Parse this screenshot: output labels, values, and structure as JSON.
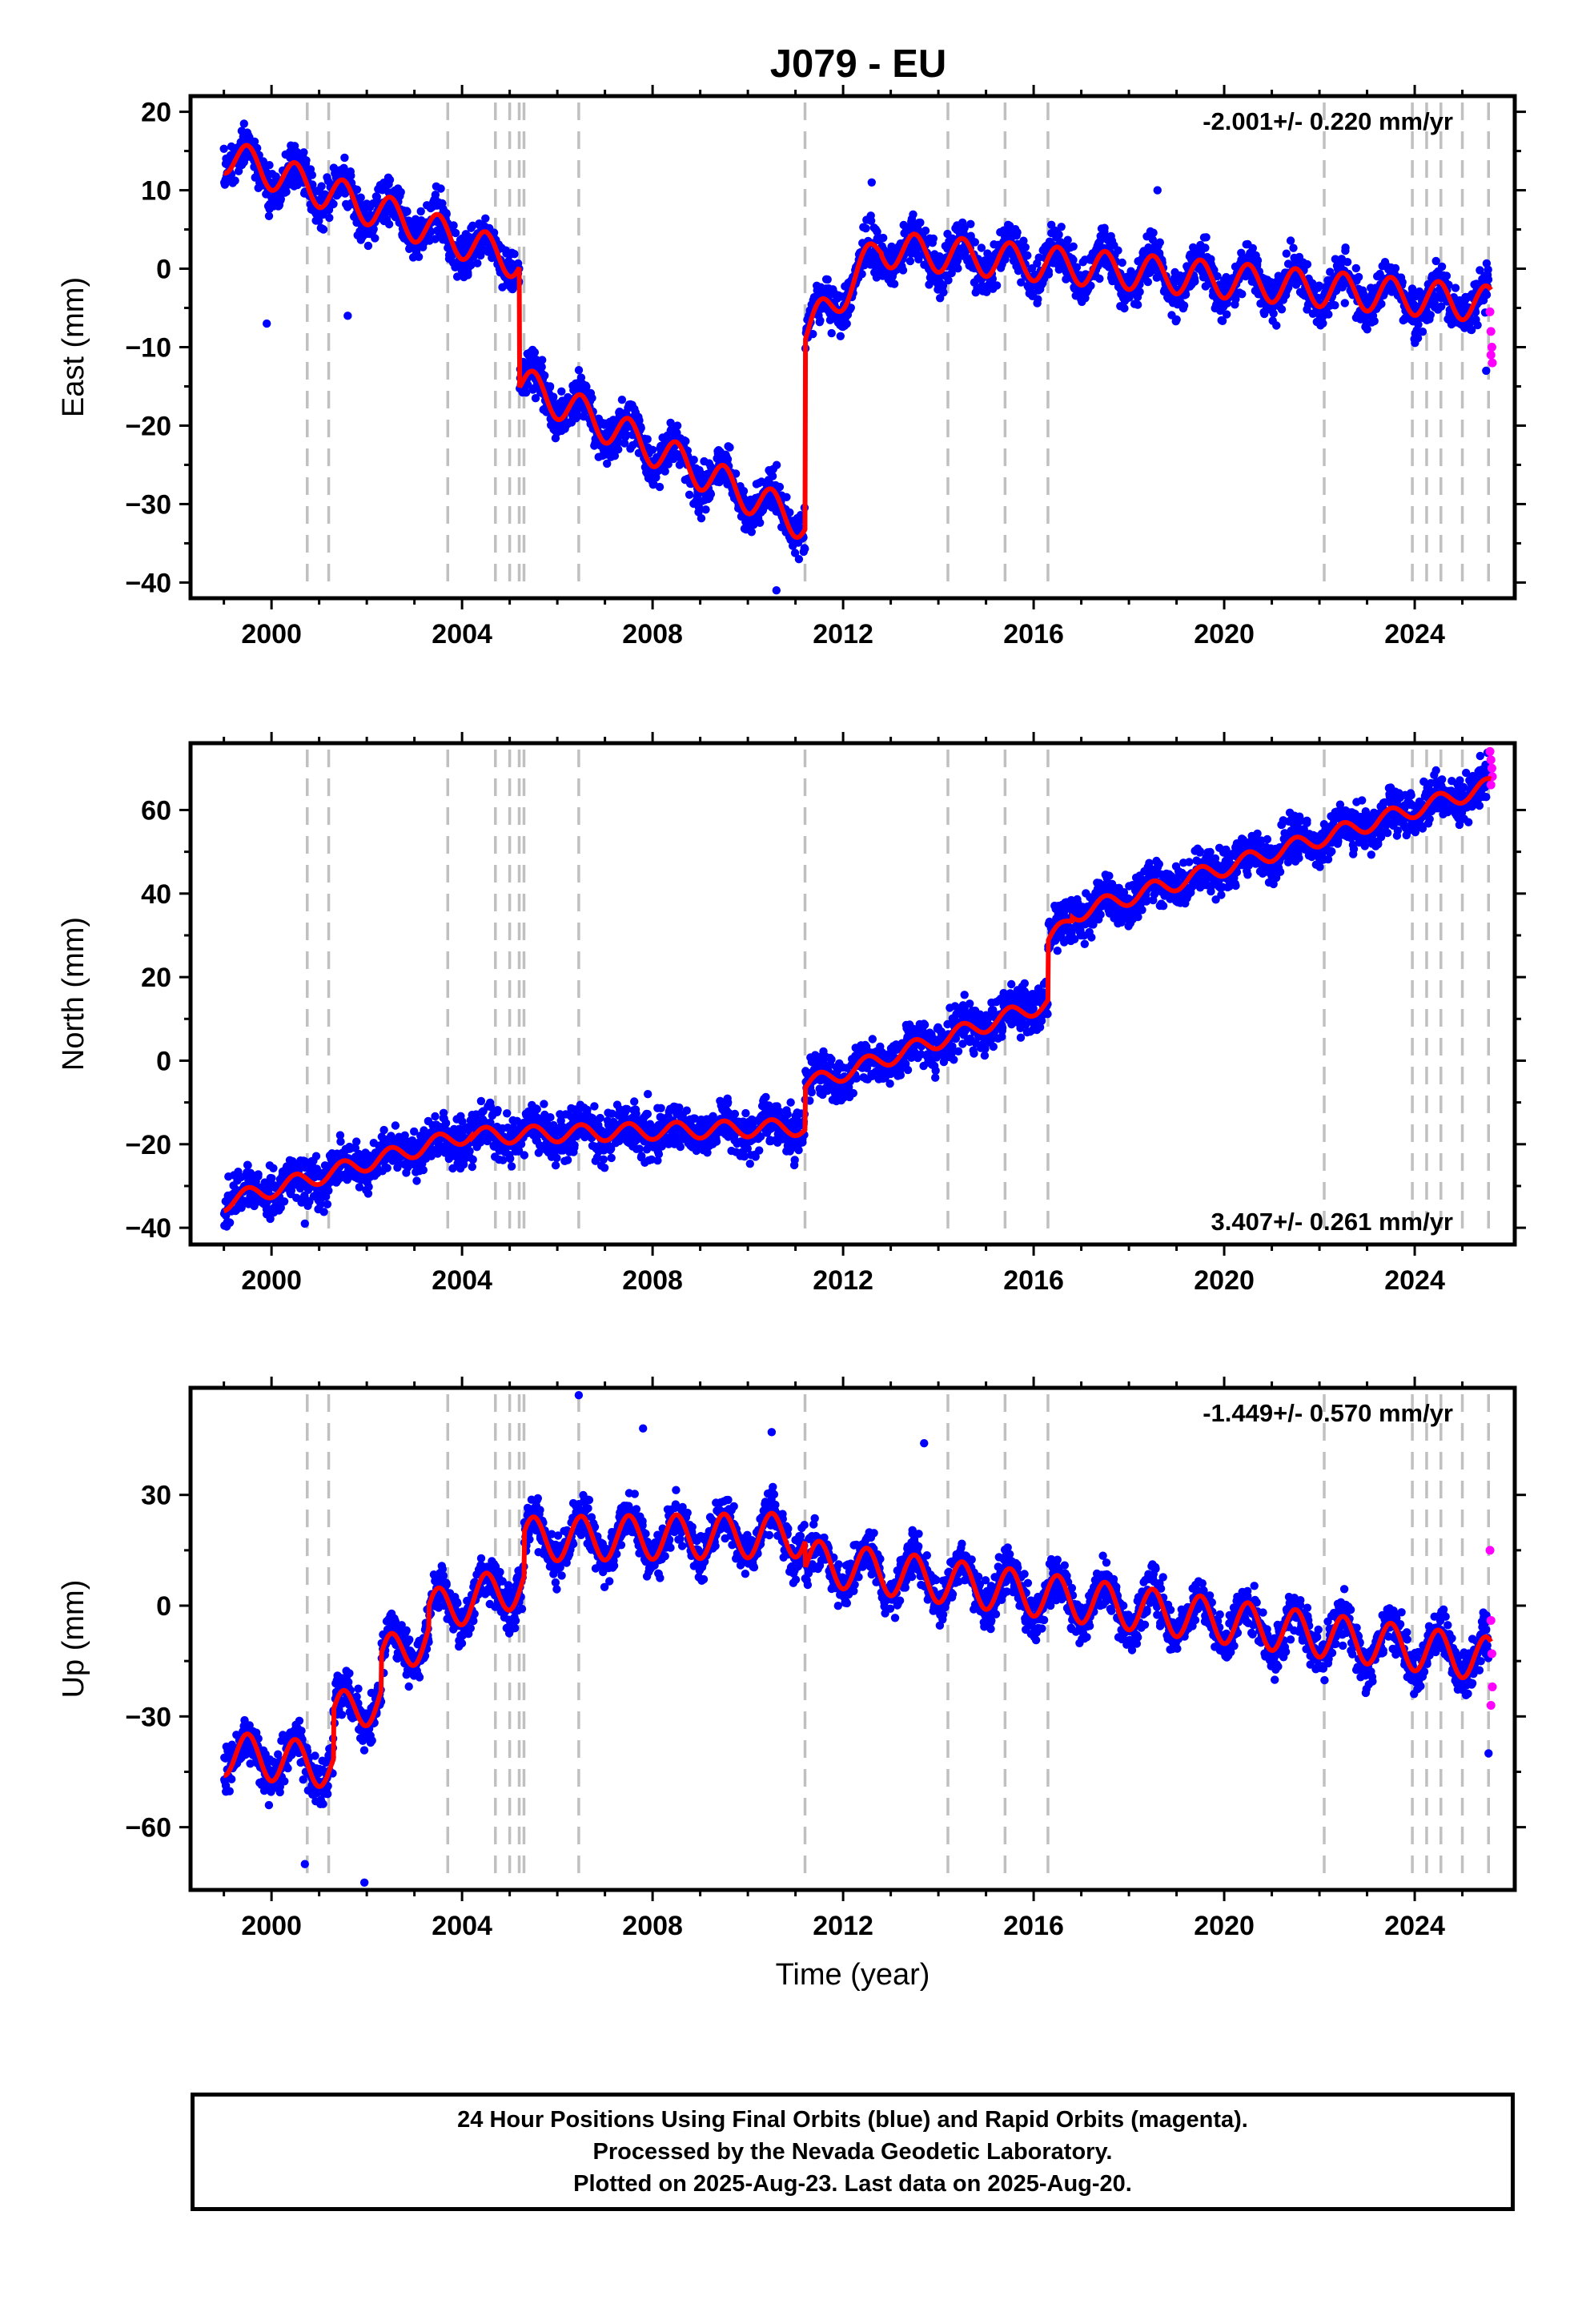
{
  "title": "J079 - EU",
  "colors": {
    "final_points": "#0000ff",
    "rapid_points": "#ff00ff",
    "model": "#ff0000",
    "event_lines": "#c0c0c0",
    "frame": "#000000"
  },
  "chart_data": [
    {
      "type": "scatter",
      "name": "east",
      "ylabel": "East (mm)",
      "xlabel": "",
      "xlim": [
        1998.3,
        2026.1
      ],
      "ylim": [
        -42,
        22
      ],
      "xticks": [
        2000,
        2004,
        2008,
        2012,
        2016,
        2020,
        2024
      ],
      "xtick_labels": [
        "2000",
        "2004",
        "2008",
        "2012",
        "2016",
        "2020",
        "2024"
      ],
      "yticks": [
        -40,
        -30,
        -20,
        -10,
        0,
        10,
        20
      ],
      "ytick_labels": [
        "−40",
        "−30",
        "−20",
        "−10",
        "0",
        "10",
        "20"
      ],
      "rate_text": "-2.001+/- 0.220 mm/yr",
      "rate_position": "top-right",
      "event_lines": [
        2000.75,
        2001.2,
        2003.7,
        2004.7,
        2005.0,
        2005.2,
        2005.3,
        2006.45,
        2011.2,
        2014.2,
        2015.4,
        2016.3,
        2022.1,
        2023.95,
        2024.25,
        2024.55,
        2025.0,
        2025.55
      ],
      "model": {
        "start_year": 1999.0,
        "end_year": 2025.6,
        "seasonal_amplitude": 2.3,
        "segments": [
          {
            "from": 1999.0,
            "to": 2005.2,
            "value_at_start": 14.5,
            "rate": -2.2
          },
          {
            "from": 2005.2,
            "to": 2011.2,
            "value_at_start": -14.5,
            "rate": -3.0
          },
          {
            "from": 2011.2,
            "to": 2012.8,
            "value_at_start": -8.5,
            "rate": 7.0
          },
          {
            "from": 2012.8,
            "to": 2025.6,
            "value_at_start": 2.5,
            "rate": -0.55
          }
        ]
      },
      "outliers": [
        {
          "x": 1999.9,
          "y": -7
        },
        {
          "x": 2001.6,
          "y": -6
        },
        {
          "x": 2018.6,
          "y": 10
        },
        {
          "x": 2010.6,
          "y": -41
        },
        {
          "x": 2012.6,
          "y": 11
        },
        {
          "x": 2025.5,
          "y": -13
        }
      ],
      "rapid_points": [
        {
          "x": 2025.58,
          "y": -5.5
        },
        {
          "x": 2025.6,
          "y": -8
        },
        {
          "x": 2025.62,
          "y": -10
        },
        {
          "x": 2025.63,
          "y": -12
        },
        {
          "x": 2025.6,
          "y": -11
        }
      ]
    },
    {
      "type": "scatter",
      "name": "north",
      "ylabel": "North (mm)",
      "xlabel": "",
      "xlim": [
        1998.3,
        2026.1
      ],
      "ylim": [
        -44,
        76
      ],
      "xticks": [
        2000,
        2004,
        2008,
        2012,
        2016,
        2020,
        2024
      ],
      "xtick_labels": [
        "2000",
        "2004",
        "2008",
        "2012",
        "2016",
        "2020",
        "2024"
      ],
      "yticks": [
        -40,
        -20,
        0,
        20,
        40,
        60
      ],
      "ytick_labels": [
        "−40",
        "−20",
        "0",
        "20",
        "40",
        "60"
      ],
      "rate_text": "3.407+/- 0.261 mm/yr",
      "rate_position": "bottom-right",
      "event_lines": [
        2000.75,
        2001.2,
        2003.7,
        2004.7,
        2005.0,
        2005.2,
        2005.3,
        2006.45,
        2011.2,
        2014.2,
        2015.4,
        2016.3,
        2022.1,
        2023.95,
        2024.25,
        2024.55,
        2025.0,
        2025.55
      ],
      "model": {
        "start_year": 1999.0,
        "end_year": 2025.6,
        "seasonal_amplitude": 2.0,
        "segments": [
          {
            "from": 1999.0,
            "to": 2004.2,
            "value_at_start": -34,
            "rate": 3.2
          },
          {
            "from": 2004.2,
            "to": 2011.2,
            "value_at_start": -18,
            "rate": 0.3
          },
          {
            "from": 2011.2,
            "to": 2016.3,
            "value_at_start": -6,
            "rate": 3.9
          },
          {
            "from": 2016.3,
            "to": 2016.8,
            "value_at_start": 28,
            "rate": 12
          },
          {
            "from": 2016.8,
            "to": 2025.6,
            "value_at_start": 35,
            "rate": 3.5
          }
        ]
      },
      "outliers": [
        {
          "x": 2007.9,
          "y": -8
        },
        {
          "x": 2000.7,
          "y": -39
        },
        {
          "x": 2010.9,
          "y": -10
        }
      ],
      "rapid_points": [
        {
          "x": 2025.58,
          "y": 74
        },
        {
          "x": 2025.6,
          "y": 72
        },
        {
          "x": 2025.62,
          "y": 70
        },
        {
          "x": 2025.63,
          "y": 68
        },
        {
          "x": 2025.6,
          "y": 66
        }
      ]
    },
    {
      "type": "scatter",
      "name": "up",
      "ylabel": "Up (mm)",
      "xlabel": "Time (year)",
      "xlim": [
        1998.3,
        2026.1
      ],
      "ylim": [
        -77,
        59
      ],
      "xticks": [
        2000,
        2004,
        2008,
        2012,
        2016,
        2020,
        2024
      ],
      "xtick_labels": [
        "2000",
        "2004",
        "2008",
        "2012",
        "2016",
        "2020",
        "2024"
      ],
      "yticks": [
        -60,
        -30,
        0,
        30
      ],
      "ytick_labels": [
        "−60",
        "−30",
        "0",
        "30"
      ],
      "rate_text": "-1.449+/- 0.570 mm/yr",
      "rate_position": "top-right",
      "event_lines": [
        2000.75,
        2001.2,
        2003.7,
        2004.7,
        2005.0,
        2005.2,
        2005.3,
        2006.45,
        2011.2,
        2014.2,
        2015.4,
        2016.3,
        2022.1,
        2023.95,
        2024.25,
        2024.55,
        2025.0,
        2025.55
      ],
      "model": {
        "start_year": 1999.0,
        "end_year": 2025.6,
        "seasonal_amplitude": 6,
        "segments": [
          {
            "from": 1999.0,
            "to": 2001.3,
            "value_at_start": -40,
            "rate": -1.5
          },
          {
            "from": 2001.3,
            "to": 2002.3,
            "value_at_start": -30,
            "rate": 5
          },
          {
            "from": 2002.3,
            "to": 2003.3,
            "value_at_start": -15,
            "rate": 7
          },
          {
            "from": 2003.3,
            "to": 2005.3,
            "value_at_start": -2,
            "rate": 4
          },
          {
            "from": 2005.3,
            "to": 2011.2,
            "value_at_start": 18,
            "rate": 0.2
          },
          {
            "from": 2011.2,
            "to": 2025.6,
            "value_at_start": 12,
            "rate": -1.85
          }
        ]
      },
      "outliers": [
        {
          "x": 2006.45,
          "y": 57
        },
        {
          "x": 2007.8,
          "y": 48
        },
        {
          "x": 2013.7,
          "y": 44
        },
        {
          "x": 2000.7,
          "y": -70
        },
        {
          "x": 2001.95,
          "y": -75
        },
        {
          "x": 2010.5,
          "y": 47
        },
        {
          "x": 2025.55,
          "y": -40
        }
      ],
      "rapid_points": [
        {
          "x": 2025.58,
          "y": 15
        },
        {
          "x": 2025.6,
          "y": -4
        },
        {
          "x": 2025.62,
          "y": -13
        },
        {
          "x": 2025.63,
          "y": -22
        },
        {
          "x": 2025.6,
          "y": -27
        }
      ]
    }
  ],
  "footer": {
    "line1": "24 Hour Positions Using Final Orbits (blue) and Rapid Orbits (magenta).",
    "line2": "Processed by the Nevada Geodetic Laboratory.",
    "line3": "Plotted on 2025-Aug-23. Last data on 2025-Aug-20."
  }
}
